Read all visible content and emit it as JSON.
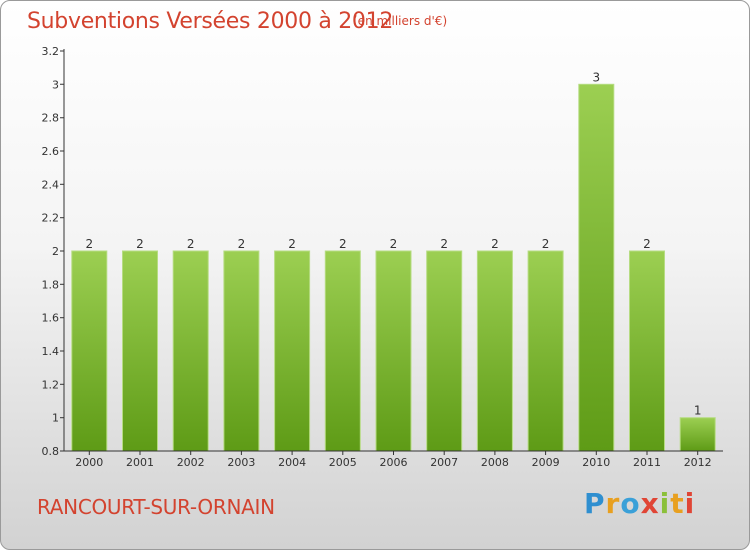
{
  "header": {
    "title": "Subventions Versées 2000 à 2012",
    "units": "(en milliers d'€)"
  },
  "footer": {
    "commune": "RANCOURT-SUR-ORNAIN",
    "logo_letters": [
      {
        "ch": "P",
        "color": "#2f8fd0"
      },
      {
        "ch": "r",
        "color": "#e8a020"
      },
      {
        "ch": "o",
        "color": "#3aa0d8"
      },
      {
        "ch": "x",
        "color": "#e04535"
      },
      {
        "ch": "i",
        "color": "#8bc03a"
      },
      {
        "ch": "t",
        "color": "#e8a020"
      },
      {
        "ch": "i",
        "color": "#e04535"
      }
    ]
  },
  "colors": {
    "bar_top": "#9ccf52",
    "bar_bottom": "#5e9b16",
    "axis": "#333333",
    "title": "#d3432f"
  },
  "chart_data": {
    "type": "bar",
    "title": "Subventions Versées 2000 à 2012",
    "subtitle": "(en milliers d'€)",
    "xlabel": "",
    "ylabel": "",
    "categories": [
      "2000",
      "2001",
      "2002",
      "2003",
      "2004",
      "2005",
      "2006",
      "2007",
      "2008",
      "2009",
      "2010",
      "2011",
      "2012"
    ],
    "values": [
      2,
      2,
      2,
      2,
      2,
      2,
      2,
      2,
      2,
      2,
      3,
      2,
      1
    ],
    "data_labels": [
      "2",
      "2",
      "2",
      "2",
      "2",
      "2",
      "2",
      "2",
      "2",
      "2",
      "3",
      "2",
      "1"
    ],
    "ylim": [
      0.8,
      3.2
    ],
    "yticks": [
      0.8,
      1,
      1.2,
      1.4,
      1.6,
      1.8,
      2,
      2.2,
      2.4,
      2.6,
      2.8,
      3,
      3.2
    ],
    "ytick_labels": [
      "0.8",
      "1",
      "1.2",
      "1.4",
      "1.6",
      "1.8",
      "2",
      "2.2",
      "2.4",
      "2.6",
      "2.8",
      "3",
      "3.2"
    ],
    "grid": false,
    "legend": "none"
  }
}
